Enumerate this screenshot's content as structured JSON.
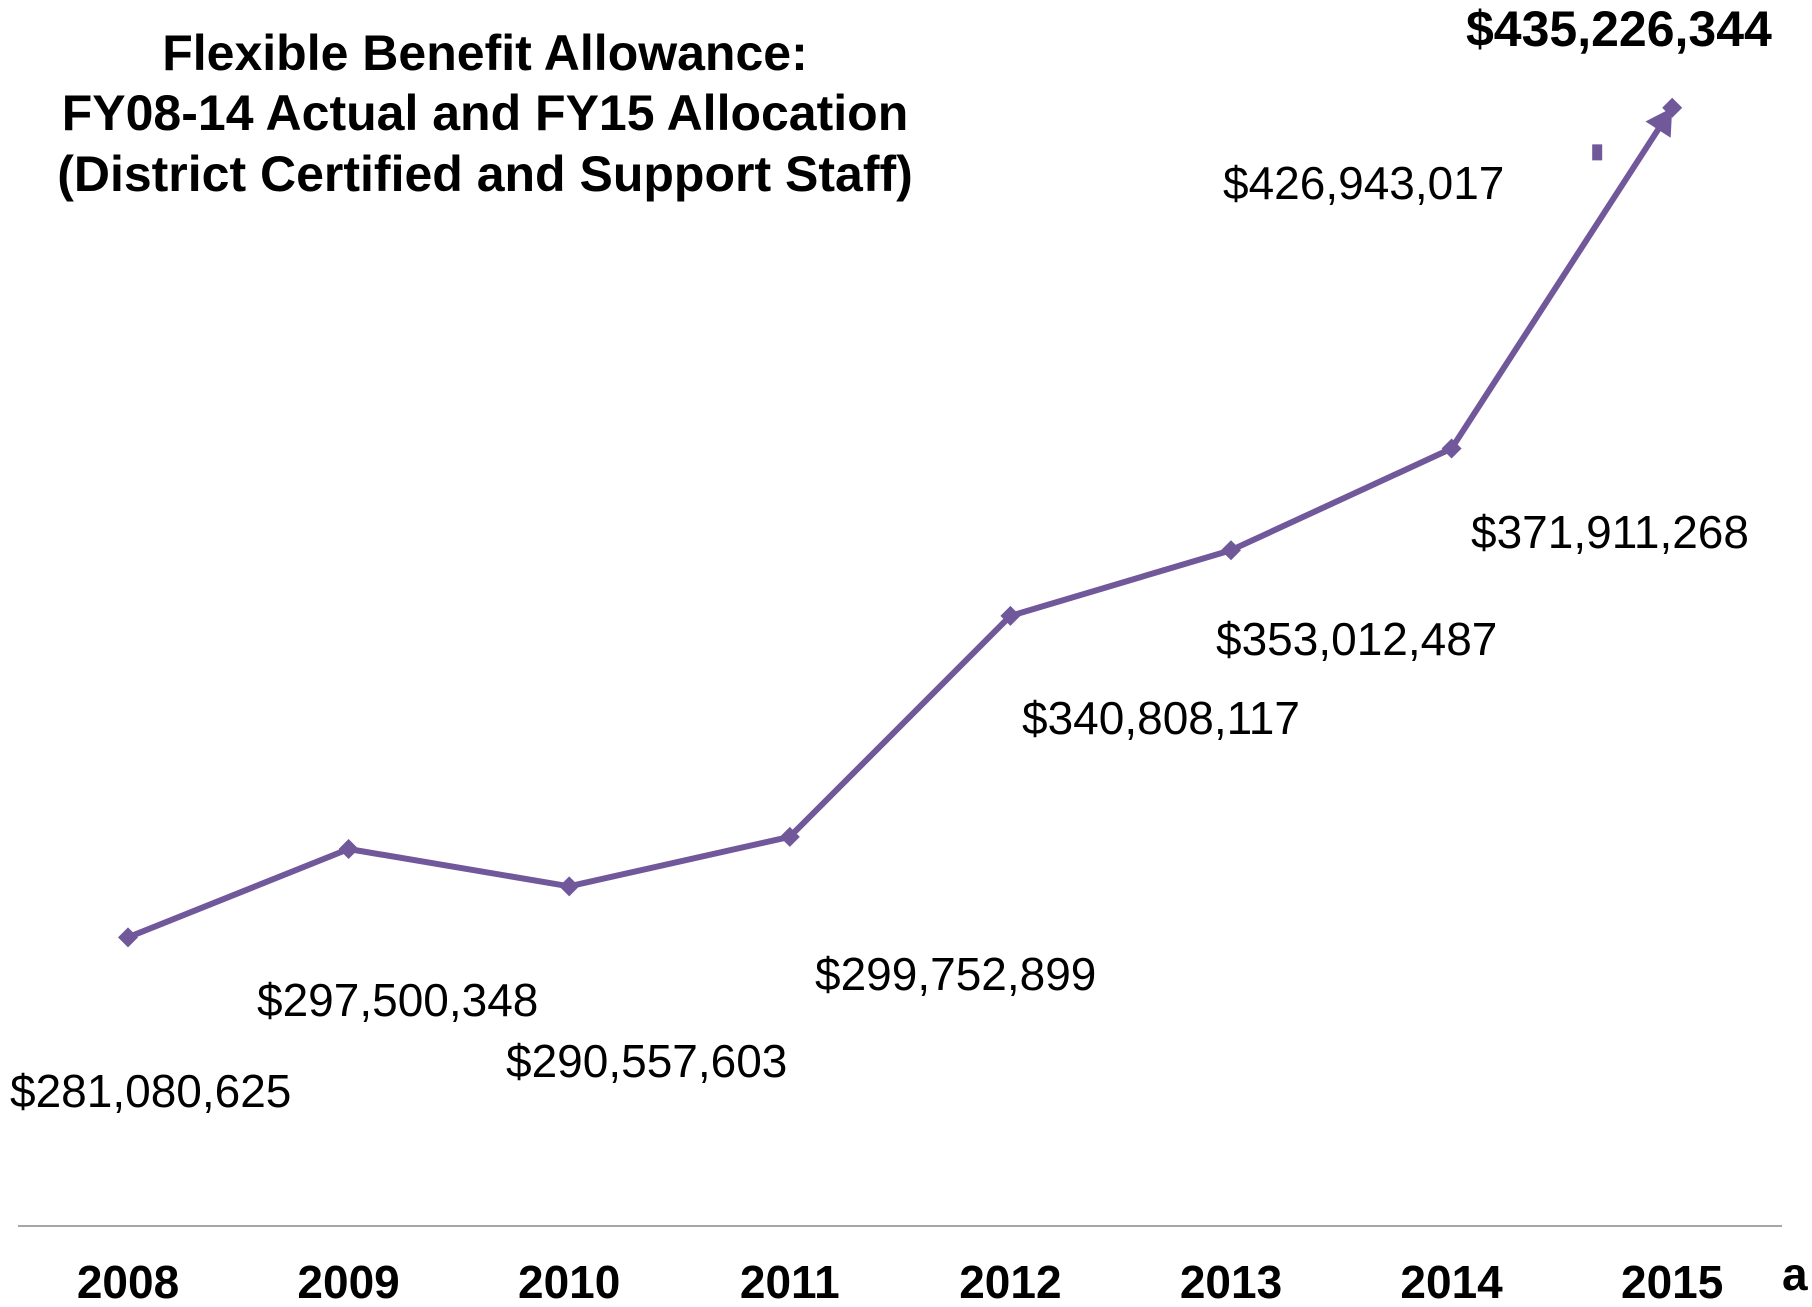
{
  "chart_data": {
    "type": "line",
    "title_lines": [
      "Flexible Benefit Allowance:",
      "FY08-14 Actual and FY15 Allocation",
      "(District Certified and Support Staff)"
    ],
    "xlabel": "",
    "ylabel": "",
    "categories": [
      "2008",
      "2009",
      "2010",
      "2011",
      "2012",
      "2013",
      "2014",
      "2015"
    ],
    "series": [
      {
        "values": [
          281080625,
          297500348,
          290557603,
          299752899,
          340808117,
          353012487,
          371911268,
          435226344
        ],
        "color": "#70589a"
      }
    ],
    "intermediate_point": {
      "x_position": 6.66,
      "value": 426943017,
      "label": "$426,943,017"
    },
    "data_labels": [
      "$281,080,625",
      "$297,500,348",
      "$290,557,603",
      "$299,752,899",
      "$340,808,117",
      "$353,012,487",
      "$371,911,268",
      "$435,226,344"
    ],
    "ylim": [
      262000000,
      436300000
    ],
    "grid": false,
    "legend": "none",
    "marker": "diamond",
    "axis_color": "#a6a6a6",
    "partial_glyph": "a"
  }
}
